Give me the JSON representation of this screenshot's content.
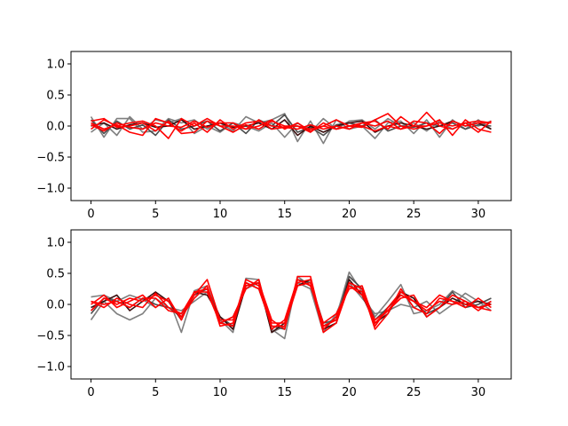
{
  "chart_data": [
    {
      "type": "line",
      "title": "",
      "xlabel": "",
      "ylabel": "",
      "xlim": [
        -1.55,
        32.55
      ],
      "ylim": [
        -1.2,
        1.2
      ],
      "xticks": [
        0,
        5,
        10,
        15,
        20,
        25,
        30
      ],
      "yticks": [
        -1.0,
        -0.5,
        0.0,
        0.5,
        1.0
      ],
      "xtick_labels": [
        "0",
        "5",
        "10",
        "15",
        "20",
        "25",
        "30"
      ],
      "ytick_labels": [
        "−1.0",
        "−0.5",
        "0.0",
        "0.5",
        "1.0"
      ],
      "grid": false,
      "x": [
        0,
        1,
        2,
        3,
        4,
        5,
        6,
        7,
        8,
        9,
        10,
        11,
        12,
        13,
        14,
        15,
        16,
        17,
        18,
        19,
        20,
        21,
        22,
        23,
        24,
        25,
        26,
        27,
        28,
        29,
        30,
        31
      ],
      "series": [
        {
          "color": "#7f7f7f",
          "values": [
            0.15,
            -0.18,
            0.12,
            0.12,
            -0.1,
            -0.08,
            0.12,
            0.05,
            0.1,
            -0.05,
            0.05,
            -0.08,
            0.15,
            0.05,
            0.1,
            0.2,
            -0.25,
            0.08,
            -0.28,
            0.1,
            -0.05,
            0.0,
            -0.2,
            0.05,
            0.08,
            -0.12,
            0.1,
            -0.18,
            0.1,
            -0.05,
            0.1,
            -0.05
          ]
        },
        {
          "color": "#7f7f7f",
          "values": [
            -0.1,
            0.05,
            -0.15,
            0.15,
            -0.05,
            0.1,
            0.05,
            0.12,
            -0.12,
            0.0,
            -0.1,
            0.05,
            0.0,
            -0.08,
            0.05,
            -0.18,
            0.05,
            -0.1,
            0.12,
            -0.05,
            0.08,
            0.1,
            -0.05,
            0.12,
            0.0,
            0.05,
            -0.08,
            0.08,
            -0.05,
            0.05,
            0.0,
            0.08
          ]
        },
        {
          "color": "#4d4d4d",
          "values": [
            0.1,
            -0.12,
            0.08,
            -0.05,
            0.02,
            -0.15,
            0.1,
            -0.05,
            0.0,
            0.08,
            -0.08,
            0.05,
            -0.12,
            0.1,
            0.0,
            0.18,
            -0.1,
            -0.02,
            -0.15,
            0.02,
            0.05,
            0.0,
            0.1,
            -0.08,
            0.0,
            -0.02,
            0.05,
            0.0,
            0.05,
            -0.05,
            0.02,
            0.0
          ]
        },
        {
          "color": "#3a0e0e",
          "values": [
            0.0,
            0.05,
            -0.05,
            0.02,
            0.05,
            -0.02,
            0.0,
            0.1,
            -0.05,
            0.0,
            0.05,
            -0.02,
            0.0,
            0.05,
            -0.05,
            0.1,
            -0.15,
            0.0,
            -0.1,
            0.0,
            0.05,
            0.08,
            -0.1,
            0.0,
            0.05,
            0.0,
            -0.05,
            0.0,
            0.08,
            0.0,
            0.05,
            -0.05
          ]
        },
        {
          "color": "#ff0000",
          "values": [
            0.05,
            -0.05,
            0.02,
            -0.1,
            -0.15,
            0.12,
            0.05,
            -0.08,
            0.05,
            -0.1,
            0.1,
            -0.05,
            0.05,
            0.08,
            0.0,
            -0.02,
            0.0,
            -0.1,
            0.05,
            -0.05,
            0.0,
            0.05,
            0.0,
            0.08,
            -0.05,
            0.0,
            0.22,
            0.0,
            -0.05,
            0.05,
            -0.1,
            0.08
          ]
        },
        {
          "color": "#ff0000",
          "values": [
            -0.05,
            0.1,
            0.0,
            0.05,
            0.08,
            0.0,
            -0.2,
            0.12,
            0.0,
            0.12,
            0.0,
            -0.1,
            0.02,
            -0.05,
            0.08,
            0.0,
            0.0,
            -0.05,
            0.0,
            -0.05,
            0.0,
            -0.02,
            0.1,
            0.2,
            0.0,
            -0.05,
            0.0,
            0.1,
            -0.15,
            0.1,
            -0.05,
            -0.1
          ]
        },
        {
          "color": "#ff0000",
          "values": [
            0.02,
            -0.08,
            0.05,
            -0.02,
            -0.05,
            0.05,
            0.0,
            -0.02,
            0.08,
            -0.02,
            0.05,
            0.05,
            -0.05,
            0.1,
            -0.05,
            -0.02,
            -0.05,
            0.02,
            -0.05,
            0.0,
            -0.05,
            0.05,
            0.08,
            -0.05,
            0.15,
            0.0,
            0.0,
            0.05,
            0.0,
            0.05,
            0.08,
            0.05
          ]
        },
        {
          "color": "#ff0000",
          "values": [
            0.08,
            0.12,
            -0.02,
            0.0,
            0.05,
            -0.08,
            0.08,
            -0.12,
            -0.1,
            0.08,
            0.0,
            0.0,
            -0.05,
            0.0,
            0.1,
            -0.05,
            0.05,
            -0.08,
            0.0,
            0.1,
            0.0,
            0.0,
            -0.08,
            0.0,
            -0.05,
            0.08,
            0.05,
            -0.12,
            0.08,
            0.0,
            0.05,
            0.05
          ]
        }
      ]
    },
    {
      "type": "line",
      "title": "",
      "xlabel": "",
      "ylabel": "",
      "xlim": [
        -1.55,
        32.55
      ],
      "ylim": [
        -1.2,
        1.2
      ],
      "xticks": [
        0,
        5,
        10,
        15,
        20,
        25,
        30
      ],
      "yticks": [
        -1.0,
        -0.5,
        0.0,
        0.5,
        1.0
      ],
      "xtick_labels": [
        "0",
        "5",
        "10",
        "15",
        "20",
        "25",
        "30"
      ],
      "ytick_labels": [
        "−1.0",
        "−0.5",
        "0.0",
        "0.5",
        "1.0"
      ],
      "grid": false,
      "x": [
        0,
        1,
        2,
        3,
        4,
        5,
        6,
        7,
        8,
        9,
        10,
        11,
        12,
        13,
        14,
        15,
        16,
        17,
        18,
        19,
        20,
        21,
        22,
        23,
        24,
        25,
        26,
        27,
        28,
        29,
        30,
        31
      ],
      "series": [
        {
          "color": "#7f7f7f",
          "values": [
            0.12,
            0.15,
            0.05,
            0.15,
            0.08,
            -0.05,
            0.1,
            -0.45,
            0.22,
            0.3,
            -0.25,
            -0.45,
            0.42,
            0.4,
            -0.4,
            -0.55,
            0.45,
            0.3,
            -0.35,
            -0.2,
            0.52,
            0.2,
            -0.2,
            0.05,
            0.32,
            -0.15,
            -0.1,
            0.0,
            0.22,
            0.1,
            -0.05,
            0.05
          ]
        },
        {
          "color": "#7f7f7f",
          "values": [
            -0.25,
            0.05,
            -0.15,
            -0.25,
            -0.15,
            0.1,
            -0.05,
            -0.1,
            0.05,
            0.2,
            -0.3,
            -0.2,
            0.25,
            0.35,
            -0.45,
            -0.35,
            0.35,
            0.25,
            -0.45,
            -0.15,
            0.35,
            0.1,
            -0.15,
            -0.1,
            0.0,
            -0.05,
            0.05,
            -0.15,
            0.0,
            0.18,
            0.05,
            -0.1
          ]
        },
        {
          "color": "#4d4d4d",
          "values": [
            -0.15,
            0.1,
            0.05,
            -0.05,
            0.1,
            0.0,
            -0.05,
            -0.2,
            0.15,
            0.25,
            -0.2,
            -0.35,
            0.35,
            0.25,
            -0.35,
            -0.4,
            0.4,
            0.35,
            -0.3,
            -0.25,
            0.45,
            0.25,
            -0.25,
            -0.05,
            0.15,
            0.05,
            -0.15,
            -0.05,
            0.2,
            -0.05,
            0.0,
            0.1
          ]
        },
        {
          "color": "#3a0e0e",
          "values": [
            -0.05,
            0.05,
            0.15,
            -0.1,
            0.05,
            0.2,
            0.05,
            -0.25,
            0.2,
            0.15,
            -0.2,
            -0.4,
            0.3,
            0.35,
            -0.45,
            -0.3,
            0.3,
            0.4,
            -0.4,
            -0.3,
            0.4,
            0.15,
            -0.3,
            -0.15,
            0.2,
            0.1,
            -0.2,
            -0.05,
            0.1,
            0.0,
            0.05,
            0.0
          ]
        },
        {
          "color": "#ff0000",
          "values": [
            0.05,
            -0.05,
            0.1,
            0.0,
            -0.05,
            0.18,
            -0.05,
            -0.15,
            0.15,
            0.4,
            -0.25,
            -0.25,
            0.3,
            0.35,
            -0.25,
            -0.4,
            0.45,
            0.45,
            -0.4,
            -0.2,
            0.3,
            0.2,
            -0.35,
            -0.05,
            0.2,
            0.05,
            -0.1,
            0.05,
            0.0,
            0.05,
            -0.05,
            0.0
          ]
        },
        {
          "color": "#ff0000",
          "values": [
            0.0,
            0.15,
            -0.05,
            0.05,
            0.15,
            -0.05,
            0.1,
            -0.25,
            0.2,
            0.25,
            -0.3,
            -0.2,
            0.25,
            0.4,
            -0.4,
            -0.25,
            0.4,
            0.3,
            -0.3,
            -0.15,
            0.25,
            0.3,
            -0.3,
            -0.1,
            0.1,
            0.15,
            -0.2,
            -0.05,
            0.15,
            0.05,
            -0.1,
            0.05
          ]
        },
        {
          "color": "#ff0000",
          "values": [
            -0.1,
            0.1,
            0.0,
            0.1,
            0.05,
            0.15,
            0.05,
            -0.2,
            0.1,
            0.3,
            -0.35,
            -0.3,
            0.4,
            0.3,
            -0.3,
            -0.3,
            0.35,
            0.4,
            -0.35,
            -0.25,
            0.35,
            0.25,
            -0.4,
            -0.15,
            0.25,
            -0.05,
            -0.15,
            0.1,
            0.05,
            -0.05,
            0.1,
            -0.05
          ]
        },
        {
          "color": "#ff0000",
          "values": [
            0.05,
            0.0,
            0.05,
            -0.05,
            0.1,
            0.1,
            -0.1,
            -0.15,
            0.2,
            0.2,
            -0.3,
            -0.35,
            0.35,
            0.25,
            -0.35,
            -0.35,
            0.3,
            0.35,
            -0.45,
            -0.3,
            0.3,
            0.15,
            -0.25,
            -0.1,
            0.15,
            0.05,
            -0.05,
            0.15,
            0.05,
            0.0,
            -0.05,
            -0.1
          ]
        }
      ]
    }
  ]
}
